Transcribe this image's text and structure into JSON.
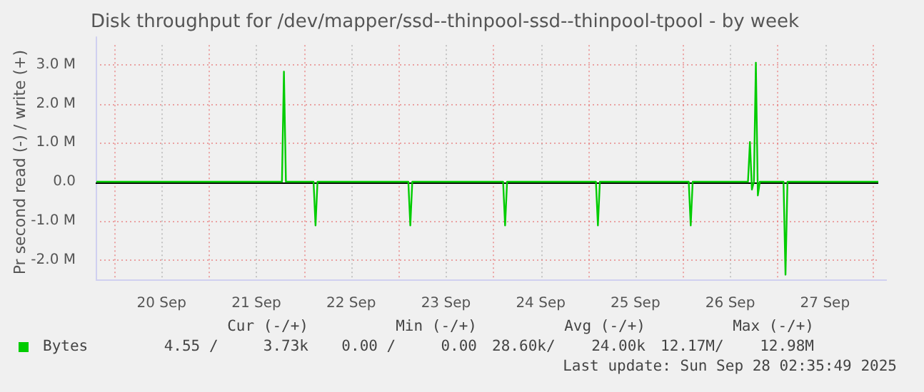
{
  "chart_data": {
    "type": "line",
    "title": "Disk throughput for /dev/mapper/ssd--thinpool-ssd--thinpool-tpool - by week",
    "ylabel": "Pr second read (-) / write (+)",
    "x": [
      "2025-09-19T19:30",
      "2025-09-21T18:30",
      "2025-09-21T19:00",
      "2025-09-21T19:30",
      "2025-09-22T02:30",
      "2025-09-22T03:00",
      "2025-09-22T03:30",
      "2025-09-23T02:30",
      "2025-09-23T03:00",
      "2025-09-23T03:30",
      "2025-09-24T02:30",
      "2025-09-24T03:00",
      "2025-09-24T03:30",
      "2025-09-25T02:00",
      "2025-09-25T02:30",
      "2025-09-25T03:00",
      "2025-09-26T01:30",
      "2025-09-26T02:00",
      "2025-09-26T02:30",
      "2025-09-26T16:30",
      "2025-09-26T17:00",
      "2025-09-26T17:30",
      "2025-09-26T18:00",
      "2025-09-26T18:30",
      "2025-09-26T19:00",
      "2025-09-26T19:30",
      "2025-09-27T01:30",
      "2025-09-27T02:00",
      "2025-09-27T02:30",
      "2025-09-28T01:30"
    ],
    "series": [
      {
        "name": "Bytes",
        "color": "#00cc00",
        "values": [
          0,
          0,
          2820000,
          0,
          0,
          -1120000,
          0,
          0,
          -1120000,
          0,
          0,
          -1120000,
          0,
          0,
          -1120000,
          0,
          0,
          -1120000,
          0,
          0,
          1020000,
          -200000,
          0,
          3050000,
          -350000,
          0,
          0,
          -2380000,
          0,
          0
        ]
      }
    ],
    "xlim": [
      "2025-09-19T19:20",
      "2025-09-28T01:30"
    ],
    "xticks": [
      {
        "value": "2025-09-20T00:00",
        "label": null
      },
      {
        "value": "2025-09-20T12:00",
        "label": "20 Sep"
      },
      {
        "value": "2025-09-21T00:00",
        "label": null
      },
      {
        "value": "2025-09-21T12:00",
        "label": "21 Sep"
      },
      {
        "value": "2025-09-22T00:00",
        "label": null
      },
      {
        "value": "2025-09-22T12:00",
        "label": "22 Sep"
      },
      {
        "value": "2025-09-23T00:00",
        "label": null
      },
      {
        "value": "2025-09-23T12:00",
        "label": "23 Sep"
      },
      {
        "value": "2025-09-24T00:00",
        "label": null
      },
      {
        "value": "2025-09-24T12:00",
        "label": "24 Sep"
      },
      {
        "value": "2025-09-25T00:00",
        "label": null
      },
      {
        "value": "2025-09-25T12:00",
        "label": "25 Sep"
      },
      {
        "value": "2025-09-26T00:00",
        "label": null
      },
      {
        "value": "2025-09-26T12:00",
        "label": "26 Sep"
      },
      {
        "value": "2025-09-27T00:00",
        "label": null
      },
      {
        "value": "2025-09-27T12:00",
        "label": "27 Sep"
      },
      {
        "value": "2025-09-28T00:00",
        "label": null
      }
    ],
    "ylim": [
      -2500000,
      3500000
    ],
    "yticks": [
      {
        "value": -2000000,
        "label": "-2.0 M"
      },
      {
        "value": -1000000,
        "label": "-1.0 M"
      },
      {
        "value": 0,
        "label": "0.0"
      },
      {
        "value": 1000000,
        "label": "1.0 M"
      },
      {
        "value": 2000000,
        "label": "2.0 M"
      },
      {
        "value": 3000000,
        "label": "3.0 M"
      }
    ],
    "grid": true,
    "legend": "bottom left",
    "marker": "none",
    "line_style": "solid",
    "ref_lines": [
      {
        "axis": "y",
        "value": 0,
        "color": "#000000"
      }
    ],
    "annotations": [
      "Cur (-/+)",
      "Min (-/+)",
      "Avg (-/+)",
      "Max (-/+)",
      "4.55 /     3.73k",
      "0.00 /     0.00",
      "28.60k/    24.00k",
      "12.17M/    12.98M",
      "Last update: Sun Sep 28 02:35:49 2025"
    ]
  }
}
